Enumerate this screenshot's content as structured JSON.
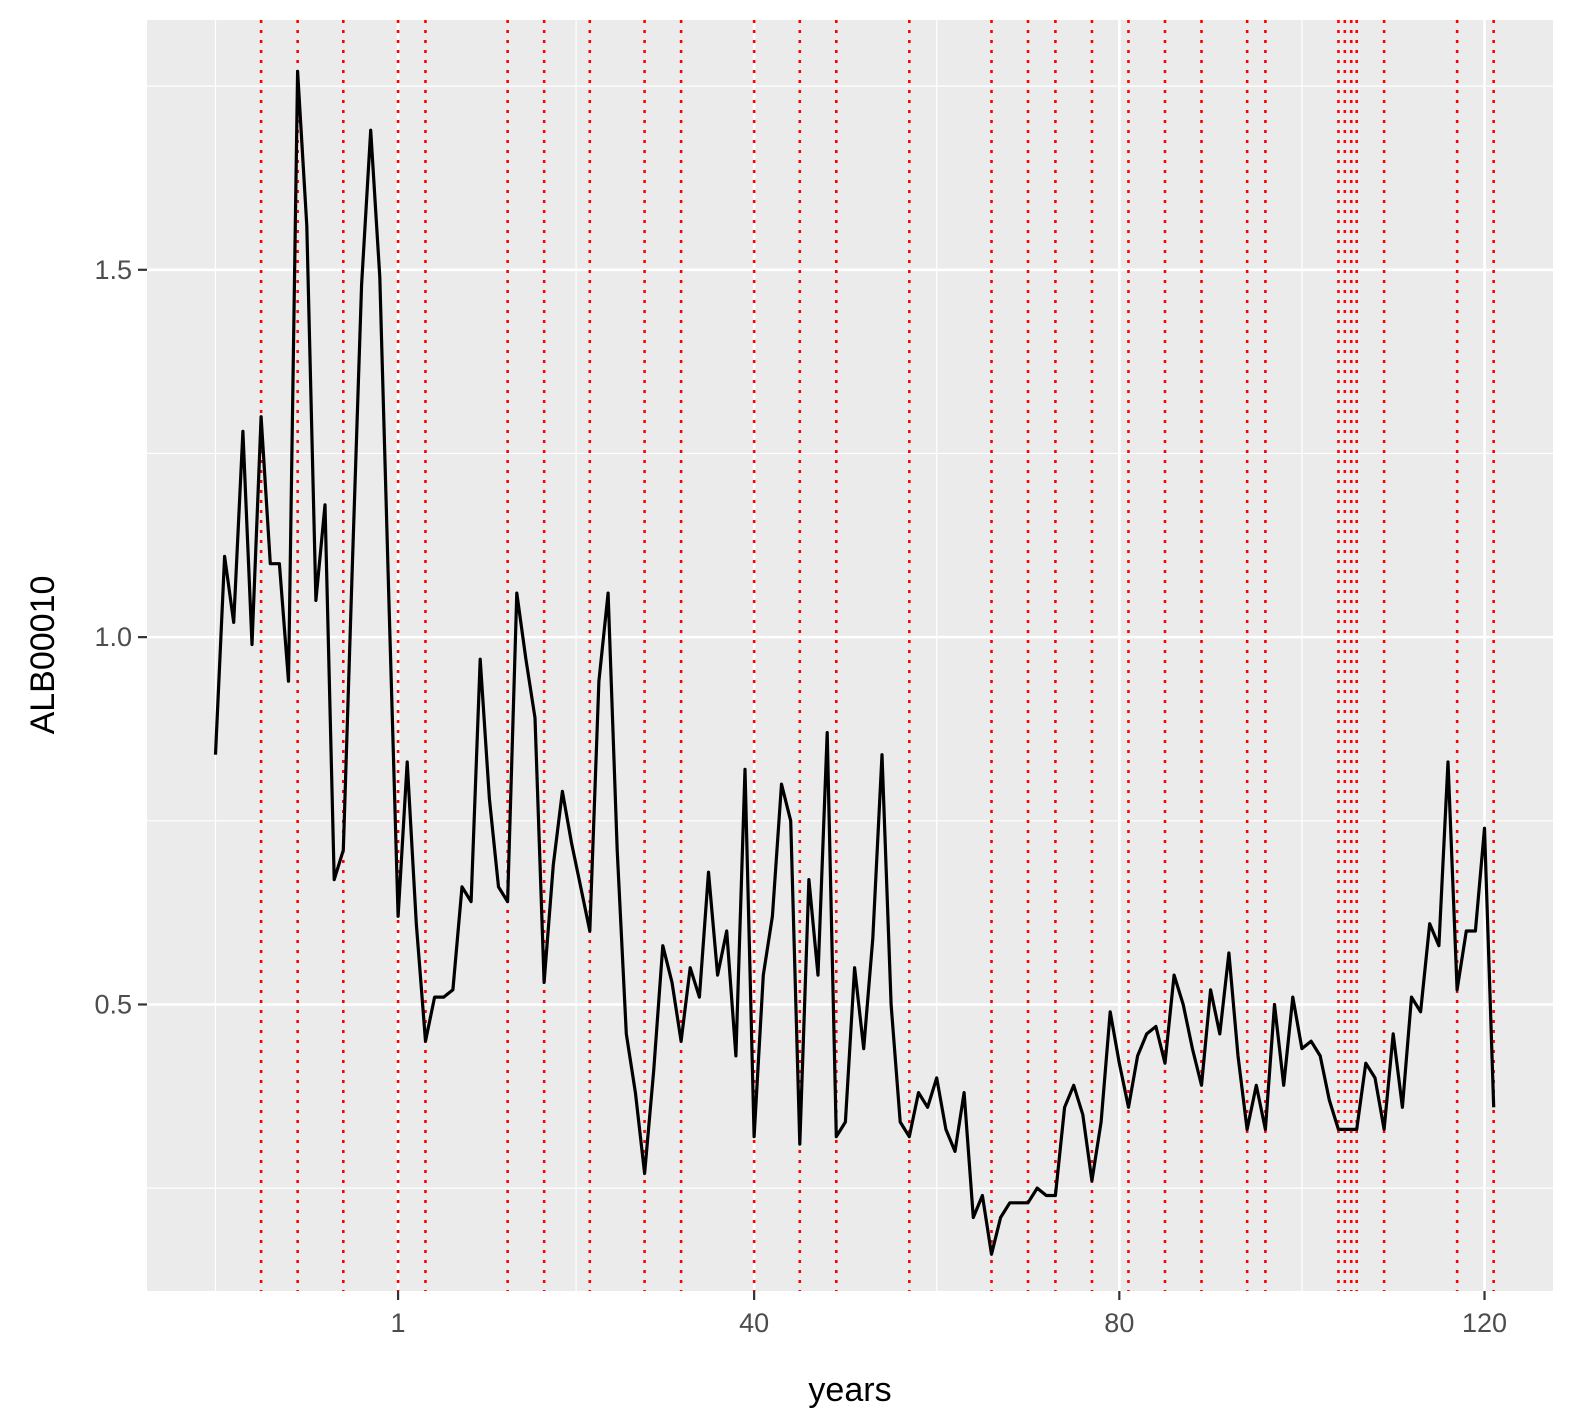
{
  "chart_data": {
    "type": "line",
    "title": "",
    "xlabel": "years",
    "ylabel": "ALB00010",
    "xlim": [
      -26.5,
      127.5
    ],
    "ylim": [
      0.11,
      1.84
    ],
    "x_ticks": [
      1,
      40,
      80,
      120
    ],
    "y_ticks": [
      0.5,
      1.0,
      1.5
    ],
    "x_tick_labels": [
      "1",
      "40",
      "80",
      "120"
    ],
    "y_tick_labels": [
      "0.5",
      "1.0",
      "1.5"
    ],
    "x_minor_gridlines": [
      -19,
      20.5,
      60,
      100
    ],
    "y_minor_gridlines": [
      0.25,
      0.75,
      1.25,
      1.75
    ],
    "panel_background": "#ebebeb",
    "grid_color": "#ffffff",
    "line_color": "#000000",
    "vline_color": "#ff0000",
    "series": [
      {
        "name": "ALB00010",
        "x": [
          -19,
          -18,
          -17,
          -16,
          -15,
          -14,
          -13,
          -12,
          -11,
          -10,
          -9,
          -8,
          -7,
          -6,
          -5,
          -4,
          -3,
          -2,
          -1,
          0,
          1,
          2,
          3,
          4,
          5,
          6,
          7,
          8,
          9,
          10,
          11,
          12,
          13,
          14,
          15,
          16,
          17,
          18,
          19,
          20,
          21,
          22,
          23,
          24,
          25,
          26,
          27,
          28,
          29,
          30,
          31,
          32,
          33,
          34,
          35,
          36,
          37,
          38,
          39,
          40,
          41,
          42,
          43,
          44,
          45,
          46,
          47,
          48,
          49,
          50,
          51,
          52,
          53,
          54,
          55,
          56,
          57,
          58,
          59,
          60,
          61,
          62,
          63,
          64,
          65,
          66,
          67,
          68,
          69,
          70,
          71,
          72,
          73,
          74,
          75,
          76,
          77,
          78,
          79,
          80,
          81,
          82,
          83,
          84,
          85,
          86,
          87,
          88,
          89,
          90,
          91,
          92,
          93,
          94,
          95,
          96,
          97,
          98,
          99,
          100,
          101,
          102,
          103,
          104,
          105,
          106,
          107,
          108,
          109,
          110,
          111,
          112,
          113,
          114,
          115,
          116,
          117,
          118,
          119,
          120,
          121
        ],
        "y": [
          0.84,
          1.11,
          1.02,
          1.28,
          0.99,
          1.3,
          1.1,
          1.1,
          0.94,
          1.77,
          1.56,
          1.05,
          1.18,
          0.67,
          0.71,
          1.1,
          1.48,
          1.69,
          1.49,
          1.05,
          0.62,
          0.83,
          0.61,
          0.45,
          0.51,
          0.51,
          0.52,
          0.66,
          0.64,
          0.97,
          0.78,
          0.66,
          0.64,
          1.06,
          0.97,
          0.89,
          0.53,
          0.69,
          0.79,
          0.72,
          0.66,
          0.6,
          0.94,
          1.06,
          0.71,
          0.46,
          0.38,
          0.27,
          0.41,
          0.58,
          0.53,
          0.45,
          0.55,
          0.51,
          0.68,
          0.54,
          0.6,
          0.43,
          0.82,
          0.32,
          0.54,
          0.62,
          0.8,
          0.75,
          0.31,
          0.67,
          0.54,
          0.87,
          0.32,
          0.34,
          0.55,
          0.44,
          0.59,
          0.84,
          0.5,
          0.34,
          0.32,
          0.38,
          0.36,
          0.4,
          0.33,
          0.3,
          0.38,
          0.21,
          0.24,
          0.16,
          0.21,
          0.23,
          0.23,
          0.23,
          0.25,
          0.24,
          0.24,
          0.36,
          0.39,
          0.35,
          0.26,
          0.34,
          0.49,
          0.42,
          0.36,
          0.43,
          0.46,
          0.47,
          0.42,
          0.54,
          0.5,
          0.44,
          0.39,
          0.52,
          0.46,
          0.57,
          0.43,
          0.33,
          0.39,
          0.33,
          0.5,
          0.39,
          0.51,
          0.44,
          0.45,
          0.43,
          0.37,
          0.33,
          0.33,
          0.33,
          0.42,
          0.4,
          0.33,
          0.46,
          0.36,
          0.51,
          0.49,
          0.61,
          0.58,
          0.83,
          0.52,
          0.6,
          0.6,
          0.74,
          0.36
        ]
      }
    ],
    "vlines": [
      -14,
      -10,
      -5,
      1,
      4,
      13,
      17,
      22,
      28,
      32,
      40,
      45,
      49,
      57,
      66,
      70,
      73,
      77,
      81,
      85,
      89,
      94,
      96,
      104,
      104.7,
      105.4,
      106,
      109,
      117,
      121
    ]
  }
}
